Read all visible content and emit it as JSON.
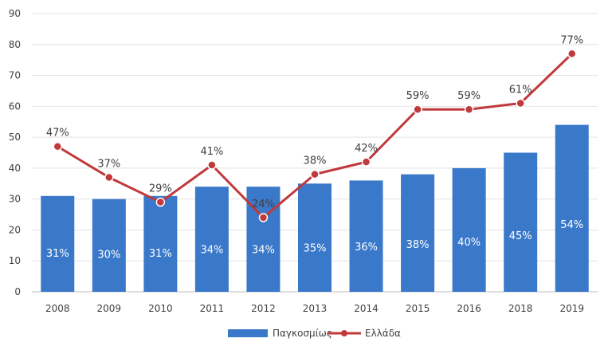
{
  "chart_data": {
    "type": "bar",
    "categories": [
      "2008",
      "2009",
      "2010",
      "2011",
      "2012",
      "2013",
      "2014",
      "2015",
      "2016",
      "2018",
      "2019"
    ],
    "ylim": [
      0,
      90
    ],
    "yticks": [
      0,
      10,
      20,
      30,
      40,
      50,
      60,
      70,
      80,
      90
    ],
    "grid": true,
    "legend_position": "bottom",
    "series": [
      {
        "name": "Παγκοσμίως",
        "type": "bar",
        "color": "#3a78c9",
        "values": [
          31,
          30,
          31,
          34,
          34,
          35,
          36,
          38,
          40,
          45,
          54
        ],
        "labels": [
          "31%",
          "30%",
          "31%",
          "34%",
          "34%",
          "35%",
          "36%",
          "38%",
          "40%",
          "45%",
          "54%"
        ]
      },
      {
        "name": "Ελλάδα",
        "type": "line",
        "color": "#c0393b",
        "values": [
          47,
          37,
          29,
          41,
          24,
          38,
          42,
          59,
          59,
          61,
          77
        ],
        "labels": [
          "47%",
          "37%",
          "29%",
          "41%",
          "24%",
          "38%",
          "42%",
          "59%",
          "59%",
          "61%",
          "77%"
        ]
      }
    ]
  }
}
